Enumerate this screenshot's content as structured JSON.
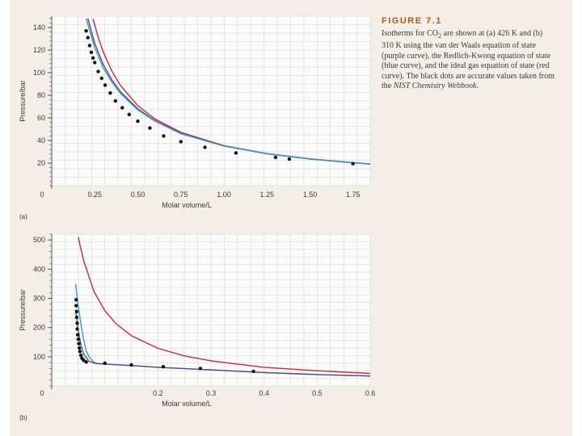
{
  "caption": {
    "heading": "FIGURE 7.1",
    "parts": [
      "Isotherms for CO",
      "2",
      " are shown at (a) 426 K and (b) 310 K using the van der Waals equation of state (purple curve), the Redlich-Kwong equation of state (blue curve), and the ideal gas equation of state (red curve). The black dots are accurate values taken from the ",
      "NIST Chemistry Webbook",
      "."
    ]
  },
  "colors": {
    "van_der_waals": "#5b4a8a",
    "redlich_kwong": "#3a9bc6",
    "ideal_gas": "#c8283a",
    "nist_dots": "#111111",
    "grid": "#c9d3da",
    "axis": "#555555"
  },
  "chart_data": [
    {
      "type": "line",
      "panel_label": "(a)",
      "xlabel": "Molar volume/L",
      "ylabel": "Pressure/bar",
      "xlim": [
        0,
        1.85
      ],
      "ylim": [
        0,
        150
      ],
      "x_ticks": [
        "0",
        "0.25",
        "0.50",
        "0.75",
        "1.00",
        "1.25",
        "1.50",
        "1.75"
      ],
      "x_tick_values": [
        0,
        0.25,
        0.5,
        0.75,
        1.0,
        1.25,
        1.5,
        1.75
      ],
      "y_ticks": [
        "20",
        "40",
        "60",
        "80",
        "100",
        "120",
        "140"
      ],
      "y_tick_values": [
        20,
        40,
        60,
        80,
        100,
        120,
        140
      ],
      "grid": true,
      "series": [
        {
          "key": "ideal_gas",
          "x": [
            0.24,
            0.27,
            0.3,
            0.35,
            0.4,
            0.5,
            0.6,
            0.75,
            1.0,
            1.25,
            1.5,
            1.75,
            1.85
          ],
          "y": [
            147.5,
            131.2,
            118.1,
            101.2,
            88.5,
            70.8,
            59.0,
            47.2,
            35.4,
            28.3,
            23.6,
            20.2,
            19.1
          ]
        },
        {
          "key": "van_der_waals",
          "x": [
            0.21,
            0.25,
            0.3,
            0.35,
            0.4,
            0.5,
            0.6,
            0.75,
            1.0,
            1.25,
            1.5,
            1.75,
            1.85
          ],
          "y": [
            148.0,
            126.0,
            107.0,
            93.5,
            83.0,
            68.0,
            57.5,
            46.5,
            35.3,
            28.4,
            23.8,
            20.4,
            19.3
          ]
        },
        {
          "key": "redlich_kwong",
          "x": [
            0.2,
            0.25,
            0.3,
            0.35,
            0.4,
            0.5,
            0.6,
            0.75,
            1.0,
            1.25,
            1.5,
            1.75,
            1.85
          ],
          "y": [
            148.0,
            122.0,
            104.0,
            91.5,
            81.5,
            67.0,
            57.0,
            46.0,
            35.0,
            28.2,
            23.7,
            20.3,
            19.2
          ]
        }
      ],
      "points": {
        "key": "nist_dots",
        "x": [
          0.2,
          0.21,
          0.22,
          0.23,
          0.24,
          0.25,
          0.27,
          0.29,
          0.31,
          0.34,
          0.37,
          0.41,
          0.45,
          0.5,
          0.57,
          0.65,
          0.75,
          0.89,
          1.07,
          1.3,
          1.38,
          1.75
        ],
        "y": [
          137,
          131,
          124,
          118,
          113,
          109,
          101,
          95,
          89,
          82,
          75,
          69,
          63,
          57,
          51,
          44,
          39,
          34,
          29,
          25,
          23.5,
          19.5
        ]
      }
    },
    {
      "type": "line",
      "panel_label": "(b)",
      "xlabel": "Molar volume/L",
      "ylabel": "Pressure/bar",
      "xlim": [
        0,
        0.6
      ],
      "ylim": [
        0,
        520
      ],
      "x_ticks": [
        "0",
        "0.2",
        "0.3",
        "0.4",
        "0.5",
        "0.6"
      ],
      "x_tick_values": [
        0,
        0.2,
        0.3,
        0.4,
        0.5,
        0.6
      ],
      "y_ticks": [
        "100",
        "200",
        "300",
        "400",
        "500"
      ],
      "y_tick_values": [
        100,
        200,
        300,
        400,
        500
      ],
      "grid": true,
      "series": [
        {
          "key": "ideal_gas",
          "x": [
            0.05,
            0.06,
            0.08,
            0.1,
            0.12,
            0.15,
            0.2,
            0.25,
            0.3,
            0.4,
            0.5,
            0.6
          ],
          "y": [
            510,
            430,
            322,
            258,
            215,
            172,
            129,
            103,
            86,
            64,
            52,
            43
          ]
        },
        {
          "key": "redlich_kwong",
          "x": [
            0.045,
            0.048,
            0.052,
            0.056,
            0.06,
            0.065,
            0.07,
            0.08,
            0.09,
            0.1,
            0.15,
            0.2,
            0.3,
            0.4,
            0.5,
            0.6
          ],
          "y": [
            350,
            300,
            250,
            200,
            160,
            120,
            100,
            80,
            76,
            75,
            70,
            64,
            55,
            46,
            39,
            34
          ]
        },
        {
          "key": "van_der_waals",
          "x": [
            0.045,
            0.05,
            0.055,
            0.06,
            0.07,
            0.08,
            0.09,
            0.1,
            0.15,
            0.2,
            0.3,
            0.4,
            0.5,
            0.6
          ],
          "y": [
            260,
            190,
            140,
            110,
            85,
            78,
            76,
            75,
            70,
            64,
            55,
            46,
            39,
            34
          ]
        }
      ],
      "points": {
        "key": "nist_dots",
        "x": [
          0.046,
          0.046,
          0.047,
          0.047,
          0.048,
          0.048,
          0.049,
          0.05,
          0.051,
          0.052,
          0.053,
          0.055,
          0.057,
          0.06,
          0.065,
          0.1,
          0.15,
          0.21,
          0.28,
          0.38
        ],
        "y": [
          295,
          275,
          255,
          235,
          215,
          195,
          175,
          160,
          145,
          130,
          118,
          105,
          95,
          88,
          82,
          78,
          72,
          66,
          60,
          50
        ]
      }
    }
  ]
}
